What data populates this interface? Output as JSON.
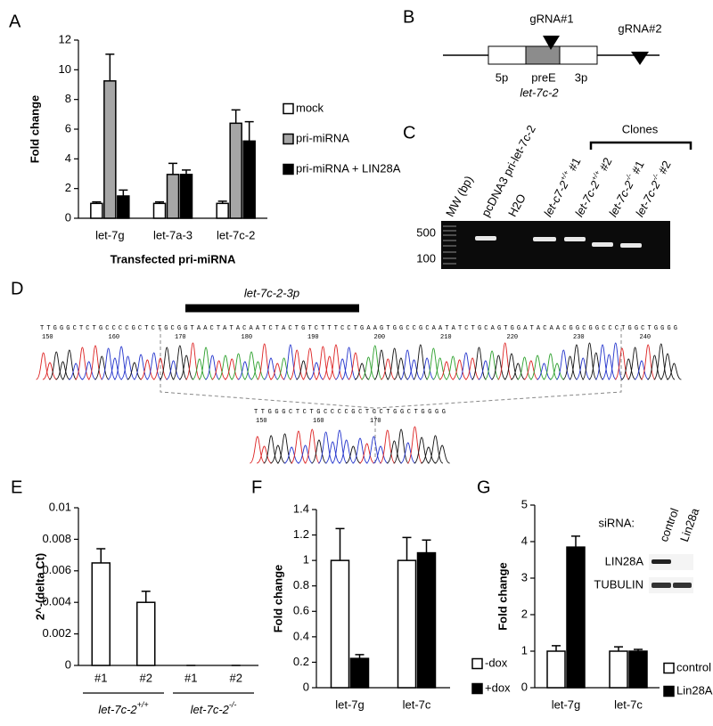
{
  "panel_labels": [
    "A",
    "B",
    "C",
    "D",
    "E",
    "F",
    "G"
  ],
  "chart_data": [
    {
      "type": "bar",
      "y_label": "Fold change",
      "x_label": "Transfected pri-miRNA",
      "categories": [
        "let-7g",
        "let-7a-3",
        "let-7c-2"
      ],
      "series": [
        {
          "name": "mock",
          "color": "#ffffff",
          "values": [
            1,
            1,
            1
          ],
          "errors": [
            0.1,
            0.1,
            0.15
          ]
        },
        {
          "name": "pri-miRNA",
          "color": "#a6a6a6",
          "values": [
            9.25,
            2.95,
            6.4
          ],
          "errors": [
            1.8,
            0.75,
            0.9
          ]
        },
        {
          "name": "pri-miRNA + LIN28A",
          "color": "#000000",
          "values": [
            1.5,
            2.95,
            5.2
          ],
          "errors": [
            0.4,
            0.3,
            1.3
          ]
        }
      ],
      "ylim": [
        0,
        12
      ],
      "yticks": [
        0,
        2,
        4,
        6,
        8,
        10,
        12
      ]
    },
    {
      "type": "bar",
      "y_label": "2^-(delta Ct)",
      "categories": [
        "#1",
        "#2",
        "#1",
        "#2"
      ],
      "series": [
        {
          "color": "#ffffff",
          "values": [
            0.0065,
            0.004,
            0,
            0
          ],
          "errors": [
            0.0009,
            0.0007,
            0,
            0
          ]
        }
      ],
      "groups": [
        {
          "label": "let-7c-2",
          "sup": "+/+"
        },
        {
          "label": "let-7c-2",
          "sup": "-/-"
        }
      ],
      "ylim": [
        0,
        0.01
      ],
      "yticks": [
        0,
        0.002,
        0.004,
        0.006,
        0.008,
        0.01
      ]
    },
    {
      "type": "bar",
      "y_label": "Fold change",
      "categories": [
        "let-7g",
        "let-7c"
      ],
      "series": [
        {
          "name": "-dox",
          "color": "#ffffff",
          "values": [
            1,
            1
          ],
          "errors": [
            0.25,
            0.18
          ]
        },
        {
          "name": "+dox",
          "color": "#000000",
          "values": [
            0.23,
            1.06
          ],
          "errors": [
            0.03,
            0.1
          ]
        }
      ],
      "ylim": [
        0,
        1.4
      ],
      "yticks": [
        0,
        0.2,
        0.4,
        0.6,
        0.8,
        1,
        1.2,
        1.4
      ]
    },
    {
      "type": "bar",
      "y_label": "Fold change",
      "categories": [
        "let-7g",
        "let-7c"
      ],
      "series": [
        {
          "name": "control",
          "color": "#ffffff",
          "values": [
            1,
            1
          ],
          "errors": [
            0.15,
            0.12
          ]
        },
        {
          "name": "Lin28A",
          "color": "#000000",
          "values": [
            3.85,
            1
          ],
          "errors": [
            0.3,
            0.05
          ]
        }
      ],
      "ylim": [
        0,
        5
      ],
      "yticks": [
        0,
        1,
        2,
        3,
        4,
        5
      ]
    }
  ],
  "inset_g": {
    "siRNA": "siRNA:",
    "lanes": [
      "control",
      "Lin28a"
    ],
    "bands": [
      "LIN28A",
      "TUBULIN"
    ]
  },
  "diagram_b": {
    "grna1": "gRNA#1",
    "grna2": "gRNA#2",
    "arm5": "5p",
    "pre": "preE",
    "arm3": "3p",
    "gene": "let-7c-2"
  },
  "gel_c": {
    "clones": "Clones",
    "lanes": [
      {
        "text": "MW (bp)"
      },
      {
        "text": "pcDNA3 pri-let-7c-2"
      },
      {
        "text": "H2O"
      },
      {
        "text": "let-c7-2",
        "sup": "+/+",
        "suffix": " #1"
      },
      {
        "text": "let-7c-2",
        "sup": "+/+",
        "suffix": " #2"
      },
      {
        "text": "let-7c-2",
        "sup": "-/-",
        "suffix": " #1"
      },
      {
        "text": "let-7c-2",
        "sup": "-/-",
        "suffix": " #2"
      }
    ],
    "markers": [
      "500",
      "100"
    ]
  },
  "sequence_d": {
    "feature": "let-7c-2-3p",
    "top": {
      "sequence": "TTGGGCTCTGCCCCGCTCTGCGGTAACTATACAATCTACTGTCTTTCCTGAAGTGGCCGCAATATCTGCAGTGGATACAACGGCGGCCCTGGCTGGGG",
      "ticks": [
        150,
        160,
        170,
        180,
        190,
        200,
        210,
        220,
        230,
        240
      ]
    },
    "bottom": {
      "sequence": "TTGGGCTCTGCCCCGCTCCTGGCTGGGG",
      "ticks": [
        150,
        160,
        170
      ]
    }
  }
}
